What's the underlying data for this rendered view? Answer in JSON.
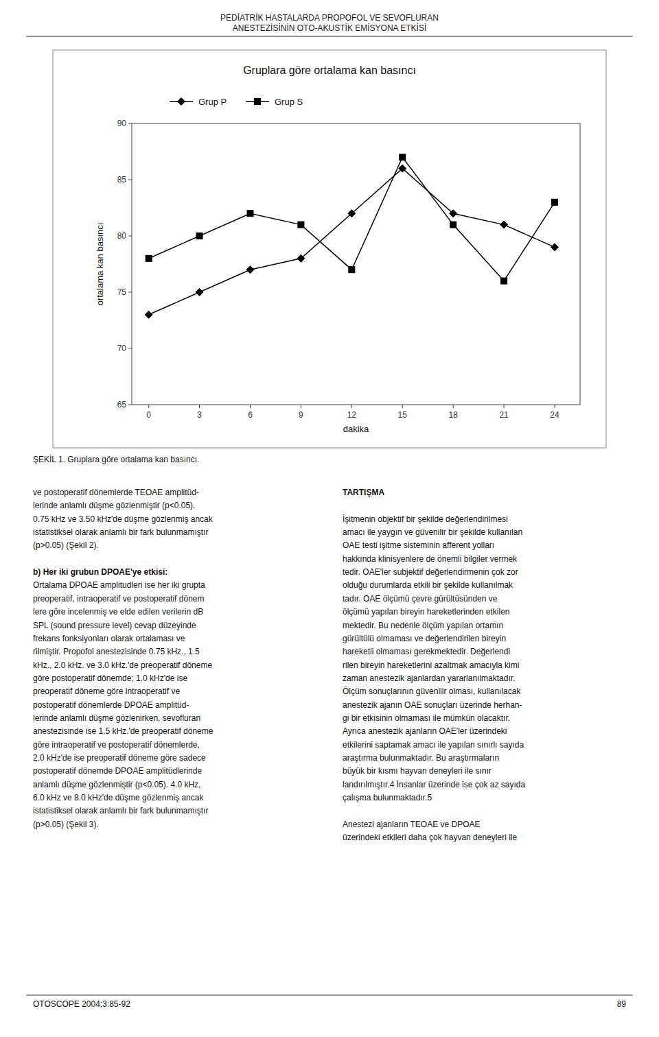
{
  "header": [
    "PEDİATRİK HASTALARDA PROPOFOL VE SEVOFLURAN",
    "ANESTEZİSİNİN  OTO-AKUSTİK EMİSYONA ETKİSİ"
  ],
  "chart_data": {
    "type": "line",
    "title": "Gruplara göre ortalama kan basıncı",
    "xlabel": "dakika",
    "ylabel": "ortalama kan basıncı",
    "x": [
      0,
      3,
      6,
      9,
      12,
      15,
      18,
      21,
      24
    ],
    "series": [
      {
        "name": "Grup P",
        "color": "#000000",
        "marker": "diamond",
        "values": [
          73,
          75,
          77,
          78,
          82,
          86,
          82,
          81,
          79
        ]
      },
      {
        "name": "Grup S",
        "color": "#000000",
        "marker": "square",
        "values": [
          78,
          80,
          82,
          81,
          77,
          87,
          81,
          76,
          83
        ]
      }
    ],
    "xlim": [
      -1,
      25.5
    ],
    "xticks": [
      0,
      3,
      6,
      9,
      12,
      15,
      18,
      21,
      24
    ],
    "ylim": [
      65,
      90
    ],
    "yticks": [
      65,
      70,
      75,
      80,
      85,
      90
    ],
    "grid": false,
    "legend": "top"
  },
  "caption": "ŞEKİL 1. Gruplara göre ortalama kan basıncı.",
  "body_left": [
    [
      "ve postoperatif dönemlerde TEOAE amplitüd-",
      "lerinde anlamlı düşme gözlenmiştir (p<0.05).",
      "0.75 kHz ve 3.50 kHz'de düşme gözlenmiş ancak",
      "istatistiksel olarak anlamlı bir fark bulunmamıştır",
      "(p>0.05) (Şekil 2)."
    ],
    [
      "b) Her iki grubun DPOAE'ye etkisi:",
      "Ortalama DPOAE amplitudleri ise her iki grupta",
      "preoperatif, intraoperatif ve postoperatif dönem",
      "lere göre incelenmiş ve elde edilen verilerin dB",
      "SPL (sound pressure level) cevap düzeyinde",
      "frekans fonksiyonları olarak ortalaması ve",
      "rilmiştir. Propofol anestezisinde 0.75 kHz., 1.5",
      "kHz., 2.0 kHz. ve 3.0 kHz.'de preoperatif döneme",
      "göre postoperatif dönemde; 1.0 kHz'de ise",
      "preoperatif döneme göre intraoperatif ve",
      "postoperatif dönemlerde DPOAE amplitüd-",
      "lerinde anlamlı düşme gözlenirken, sevofluran",
      "anestezisinde ise 1.5 kHz.'de preoperatif döneme",
      "göre intraoperatif ve postoperatif dönemlerde,",
      "2.0 kHz'de ise preoperatif döneme göre sadece",
      "postoperatif dönemde DPOAE amplitüdlerinde",
      "anlamlı düşme gözlenmiştir (p<0.05). 4.0 kHz,",
      "6.0 kHz ve 8.0 kHz'de düşme gözlenmiş ancak",
      "istatistiksel olarak anlamlı bir fark bulunmamıştır",
      "(p>0.05) (Şekil 3)."
    ]
  ],
  "body_right": [
    [
      "TARTIŞMA"
    ],
    [
      "İşitmenin objektif bir şekilde değerlendirilmesi",
      "amacı ile yaygın ve güvenilir bir şekilde kullanılan",
      "OAE testi işitme sisteminin afferent yolları",
      "hakkında klinisyenlere de önemli bilgiler vermek",
      "tedir. OAE'ler subjektif değerlendirmenin çok zor",
      "olduğu durumlarda etkili bir şekilde kullanılmak",
      "tadır. OAE ölçümü çevre gürültüsünden ve",
      "ölçümü yapılan bireyin hareketlerinden etkilen",
      "mektedir. Bu nedenle ölçüm yapılan ortamın",
      "gürültülü olmaması ve değerlendirilen bireyin",
      "hareketli olmaması gerekmektedir. Değerlendi",
      "rilen bireyin hareketlerini azaltmak amacıyla kimi",
      "zaman anestezik ajanlardan yararlanılmaktadır.",
      "Ölçüm sonuçlarının güvenilir olması, kullanılacak",
      "anestezik ajanın OAE sonuçları üzerinde herhan-",
      "gi bir etkisinin olmaması ile mümkün olacaktır.",
      "Ayrıca anestezik ajanların OAE'ler üzerindeki",
      "etkilerini saptamak amacı ile yapılan sınırlı sayıda",
      "araştırma bulunmaktadır. Bu araştırmaların",
      "büyük bir kısmı hayvan deneyleri ile sınır",
      "landırılmıştır.4 İnsanlar üzerinde ise çok az sayıda",
      "çalışma bulunmaktadır.5"
    ],
    [
      "Anestezi ajanların TEOAE ve DPOAE",
      "üzerindeki etkileri daha çok hayvan deneyleri ile"
    ]
  ],
  "footer_left": "OTOSCOPE 2004;3:85-92",
  "footer_right": "89"
}
